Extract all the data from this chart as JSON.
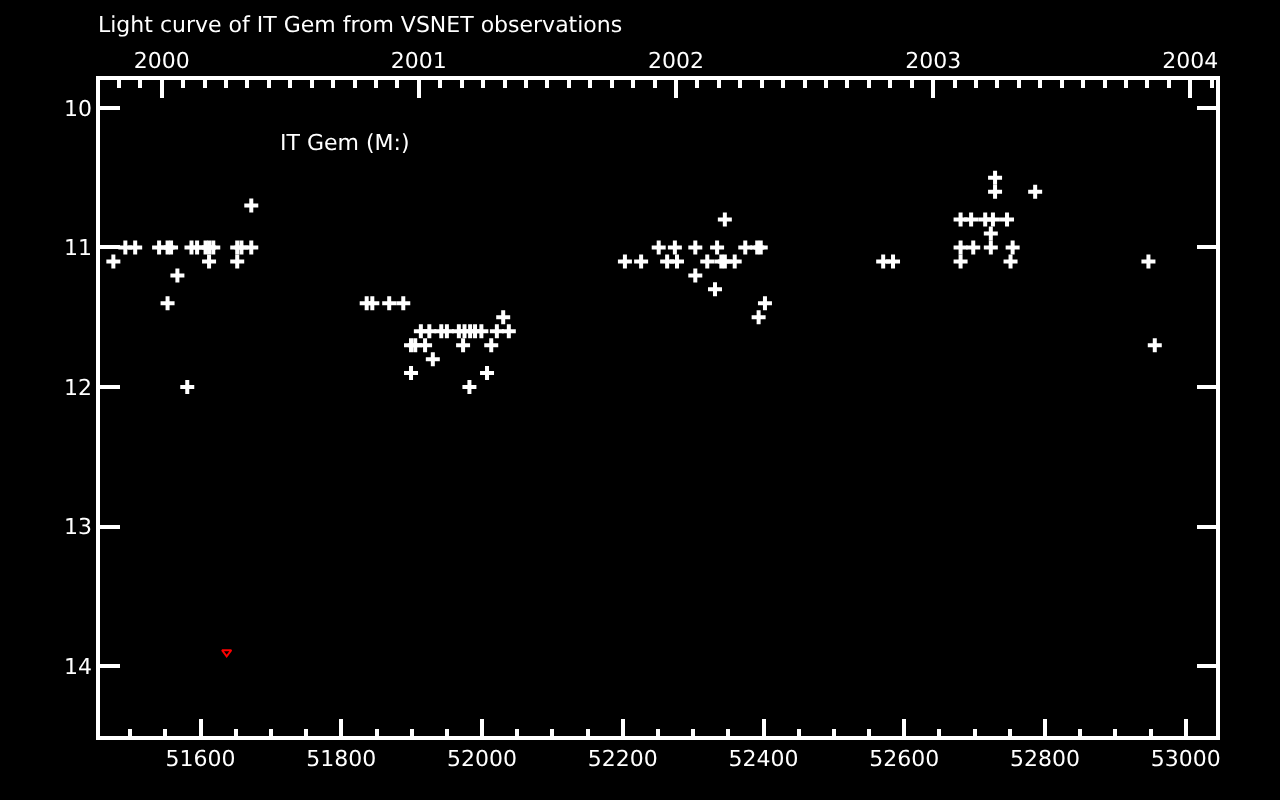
{
  "chart_data": {
    "type": "scatter",
    "title": "Light curve of IT Gem from VSNET observations",
    "annotations": [
      "IT Gem (M:)"
    ],
    "xlim": [
      51457,
      53043
    ],
    "xticks": [
      {
        "value": 51500,
        "label": null
      },
      {
        "value": 51550,
        "label": null
      },
      51600,
      {
        "value": 51650,
        "label": null
      },
      {
        "value": 51700,
        "label": null
      },
      {
        "value": 51750,
        "label": null
      },
      51800,
      {
        "value": 51850,
        "label": null
      },
      {
        "value": 51900,
        "label": null
      },
      {
        "value": 51950,
        "label": null
      },
      52000,
      {
        "value": 52050,
        "label": null
      },
      {
        "value": 52100,
        "label": null
      },
      {
        "value": 52150,
        "label": null
      },
      52200,
      {
        "value": 52250,
        "label": null
      },
      {
        "value": 52300,
        "label": null
      },
      {
        "value": 52350,
        "label": null
      },
      52400,
      {
        "value": 52450,
        "label": null
      },
      {
        "value": 52500,
        "label": null
      },
      {
        "value": 52550,
        "label": null
      },
      52600,
      {
        "value": 52650,
        "label": null
      },
      {
        "value": 52700,
        "label": null
      },
      {
        "value": 52750,
        "label": null
      },
      52800,
      {
        "value": 52850,
        "label": null
      },
      {
        "value": 52900,
        "label": null
      },
      {
        "value": 52950,
        "label": null
      },
      53000
    ],
    "x2lim": [
      1999.76,
      2004.1
    ],
    "x2ticks": [
      {
        "value": 1999.8333,
        "label": null
      },
      {
        "value": 1999.9167,
        "label": null
      },
      2000,
      {
        "value": 2000.0833,
        "label": null
      },
      {
        "value": 2000.1667,
        "label": null
      },
      {
        "value": 2000.25,
        "label": null
      },
      {
        "value": 2000.3333,
        "label": null
      },
      {
        "value": 2000.4167,
        "label": null
      },
      {
        "value": 2000.5,
        "label": null
      },
      {
        "value": 2000.5833,
        "label": null
      },
      {
        "value": 2000.6667,
        "label": null
      },
      {
        "value": 2000.75,
        "label": null
      },
      {
        "value": 2000.8333,
        "label": null
      },
      {
        "value": 2000.9167,
        "label": null
      },
      2001,
      {
        "value": 2001.0833,
        "label": null
      },
      {
        "value": 2001.1667,
        "label": null
      },
      {
        "value": 2001.25,
        "label": null
      },
      {
        "value": 2001.3333,
        "label": null
      },
      {
        "value": 2001.4167,
        "label": null
      },
      {
        "value": 2001.5,
        "label": null
      },
      {
        "value": 2001.5833,
        "label": null
      },
      {
        "value": 2001.6667,
        "label": null
      },
      {
        "value": 2001.75,
        "label": null
      },
      {
        "value": 2001.8333,
        "label": null
      },
      {
        "value": 2001.9167,
        "label": null
      },
      2002,
      {
        "value": 2002.0833,
        "label": null
      },
      {
        "value": 2002.1667,
        "label": null
      },
      {
        "value": 2002.25,
        "label": null
      },
      {
        "value": 2002.3333,
        "label": null
      },
      {
        "value": 2002.4167,
        "label": null
      },
      {
        "value": 2002.5,
        "label": null
      },
      {
        "value": 2002.5833,
        "label": null
      },
      {
        "value": 2002.6667,
        "label": null
      },
      {
        "value": 2002.75,
        "label": null
      },
      {
        "value": 2002.8333,
        "label": null
      },
      {
        "value": 2002.9167,
        "label": null
      },
      2003,
      {
        "value": 2003.0833,
        "label": null
      },
      {
        "value": 2003.1667,
        "label": null
      },
      {
        "value": 2003.25,
        "label": null
      },
      {
        "value": 2003.3333,
        "label": null
      },
      {
        "value": 2003.4167,
        "label": null
      },
      {
        "value": 2003.5,
        "label": null
      },
      {
        "value": 2003.5833,
        "label": null
      },
      {
        "value": 2003.6667,
        "label": null
      },
      {
        "value": 2003.75,
        "label": null
      },
      {
        "value": 2003.8333,
        "label": null
      },
      {
        "value": 2003.9167,
        "label": null
      },
      2004,
      {
        "value": 2004.0833,
        "label": null
      }
    ],
    "ylim": [
      14.5,
      9.8
    ],
    "yticks": [
      10,
      11,
      12,
      13,
      14
    ],
    "series": [
      {
        "color": "#ffffff",
        "marker": "cross",
        "x": [
          51476,
          51493,
          51507,
          51541,
          51553,
          51553,
          51558,
          51567,
          51581,
          51587,
          51595,
          51607,
          51612,
          51612,
          51618,
          51652,
          51652,
          51658,
          51672,
          51672,
          51836,
          51844,
          51868,
          51888,
          51899,
          51899,
          51905,
          51913,
          51919,
          51925,
          51930,
          51942,
          51950,
          51967,
          51973,
          51975,
          51982,
          51983,
          51990,
          51999,
          52007,
          52013,
          52021,
          52030,
          52038,
          52203,
          52226,
          52251,
          52263,
          52274,
          52277,
          52303,
          52303,
          52320,
          52331,
          52334,
          52340,
          52345,
          52345,
          52359,
          52374,
          52391,
          52393,
          52396,
          52402,
          52570,
          52584,
          52680,
          52680,
          52680,
          52695,
          52698,
          52715,
          52723,
          52723,
          52726,
          52729,
          52729,
          52746,
          52751,
          52754,
          52786,
          52947,
          52956
        ],
        "values": [
          11.1,
          11.0,
          11.0,
          11.0,
          11.0,
          11.4,
          11.0,
          11.2,
          12.0,
          11.0,
          11.0,
          11.0,
          11.0,
          11.1,
          11.0,
          11.0,
          11.1,
          11.0,
          11.0,
          10.7,
          11.4,
          11.4,
          11.4,
          11.4,
          11.7,
          11.9,
          11.7,
          11.6,
          11.7,
          11.6,
          11.8,
          11.6,
          11.6,
          11.6,
          11.7,
          11.6,
          12.0,
          11.6,
          11.6,
          11.6,
          11.9,
          11.7,
          11.6,
          11.5,
          11.6,
          11.1,
          11.1,
          11.0,
          11.1,
          11.0,
          11.1,
          11.0,
          11.2,
          11.1,
          11.3,
          11.0,
          11.1,
          11.1,
          10.8,
          11.1,
          11.0,
          11.0,
          11.5,
          11.0,
          11.4,
          11.1,
          11.1,
          10.8,
          11.0,
          11.1,
          10.8,
          11.0,
          10.8,
          10.9,
          11.0,
          10.8,
          10.5,
          10.6,
          10.8,
          11.1,
          11.0,
          10.6,
          11.1,
          11.7
        ]
      },
      {
        "color": "#ff0000",
        "marker": "triangle",
        "x": [
          51637
        ],
        "values": [
          13.9
        ]
      }
    ]
  }
}
